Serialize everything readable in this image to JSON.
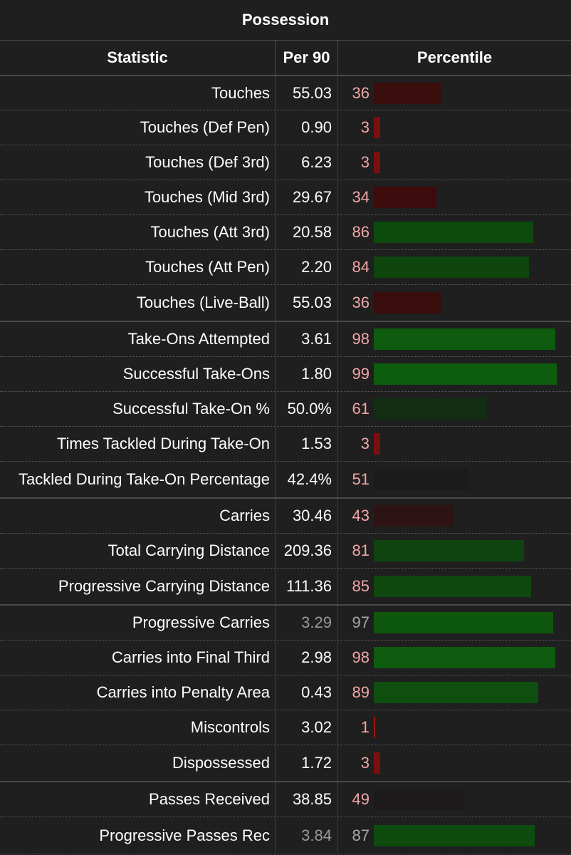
{
  "table": {
    "title": "Possession",
    "headers": {
      "statistic": "Statistic",
      "per90": "Per 90",
      "percentile": "Percentile"
    },
    "rows": [
      {
        "stat": "Touches",
        "per90": "55.03",
        "pct": 36,
        "pct_text": "36",
        "color": "#3a0d0d"
      },
      {
        "stat": "Touches (Def Pen)",
        "per90": "0.90",
        "pct": 3,
        "pct_text": "3",
        "color": "#7a0f0f"
      },
      {
        "stat": "Touches (Def 3rd)",
        "per90": "6.23",
        "pct": 3,
        "pct_text": "3",
        "color": "#7a0f0f"
      },
      {
        "stat": "Touches (Mid 3rd)",
        "per90": "29.67",
        "pct": 34,
        "pct_text": "34",
        "color": "#3d0b0b"
      },
      {
        "stat": "Touches (Att 3rd)",
        "per90": "20.58",
        "pct": 86,
        "pct_text": "86",
        "color": "#0d4a0d"
      },
      {
        "stat": "Touches (Att Pen)",
        "per90": "2.20",
        "pct": 84,
        "pct_text": "84",
        "color": "#0d450d"
      },
      {
        "stat": "Touches (Live-Ball)",
        "per90": "55.03",
        "pct": 36,
        "pct_text": "36",
        "color": "#3a0d0d",
        "group_end": true
      },
      {
        "stat": "Take-Ons Attempted",
        "per90": "3.61",
        "pct": 98,
        "pct_text": "98",
        "color": "#0e5a0e"
      },
      {
        "stat": "Successful Take-Ons",
        "per90": "1.80",
        "pct": 99,
        "pct_text": "99",
        "color": "#0e5c0e"
      },
      {
        "stat": "Successful Take-On %",
        "per90": "50.0%",
        "pct": 61,
        "pct_text": "61",
        "color": "#132e13"
      },
      {
        "stat": "Times Tackled During Take-On",
        "per90": "1.53",
        "pct": 3,
        "pct_text": "3",
        "color": "#7a0f0f"
      },
      {
        "stat": "Tackled During Take-On Percentage",
        "per90": "42.4%",
        "pct": 51,
        "pct_text": "51",
        "color": "#1b1b1b",
        "group_end": true
      },
      {
        "stat": "Carries",
        "per90": "30.46",
        "pct": 43,
        "pct_text": "43",
        "color": "#2d1313"
      },
      {
        "stat": "Total Carrying Distance",
        "per90": "209.36",
        "pct": 81,
        "pct_text": "81",
        "color": "#0f430f"
      },
      {
        "stat": "Progressive Carrying Distance",
        "per90": "111.36",
        "pct": 85,
        "pct_text": "85",
        "color": "#0e480e",
        "group_end": true
      },
      {
        "stat": "Progressive Carries",
        "per90": "3.29",
        "pct": 97,
        "pct_text": "97",
        "color": "#0e580e",
        "muted": true
      },
      {
        "stat": "Carries into Final Third",
        "per90": "2.98",
        "pct": 98,
        "pct_text": "98",
        "color": "#0e5a0e"
      },
      {
        "stat": "Carries into Penalty Area",
        "per90": "0.43",
        "pct": 89,
        "pct_text": "89",
        "color": "#0e4e0e"
      },
      {
        "stat": "Miscontrols",
        "per90": "3.02",
        "pct": 1,
        "pct_text": "1",
        "color": "#a01212"
      },
      {
        "stat": "Dispossessed",
        "per90": "1.72",
        "pct": 3,
        "pct_text": "3",
        "color": "#7a0f0f",
        "group_end": true
      },
      {
        "stat": "Passes Received",
        "per90": "38.85",
        "pct": 49,
        "pct_text": "49",
        "color": "#1c1a1a"
      },
      {
        "stat": "Progressive Passes Rec",
        "per90": "3.84",
        "pct": 87,
        "pct_text": "87",
        "color": "#0e4b0e",
        "muted": true
      }
    ]
  }
}
